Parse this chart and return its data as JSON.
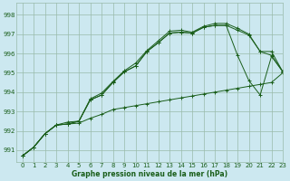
{
  "title": "Graphe pression niveau de la mer (hPa)",
  "bg_color": "#cce8f0",
  "grid_color": "#99bbaa",
  "line_color": "#1a5e1a",
  "marker": "+",
  "xlim": [
    -0.5,
    23
  ],
  "ylim": [
    990.4,
    998.6
  ],
  "yticks": [
    991,
    992,
    993,
    994,
    995,
    996,
    997,
    998
  ],
  "xticks": [
    0,
    1,
    2,
    3,
    4,
    5,
    6,
    7,
    8,
    9,
    10,
    11,
    12,
    13,
    14,
    15,
    16,
    17,
    18,
    19,
    20,
    21,
    22,
    23
  ],
  "series": [
    [
      990.7,
      991.15,
      991.85,
      992.3,
      992.35,
      992.4,
      992.65,
      992.85,
      993.1,
      993.2,
      993.3,
      993.4,
      993.5,
      993.6,
      993.7,
      993.8,
      993.9,
      994.0,
      994.1,
      994.2,
      994.3,
      994.4,
      994.5,
      995.0
    ],
    [
      990.7,
      991.15,
      991.85,
      992.3,
      992.35,
      992.5,
      993.6,
      993.85,
      994.5,
      995.05,
      995.35,
      996.1,
      996.55,
      997.05,
      997.1,
      997.05,
      997.35,
      997.45,
      997.45,
      997.2,
      996.95,
      996.1,
      995.9,
      995.05
    ],
    [
      990.7,
      991.15,
      991.85,
      992.3,
      992.35,
      992.5,
      993.6,
      993.85,
      994.5,
      995.05,
      995.35,
      996.1,
      996.55,
      997.05,
      997.1,
      997.05,
      997.35,
      997.45,
      997.45,
      995.9,
      994.6,
      993.85,
      995.85,
      995.05
    ],
    [
      990.7,
      991.15,
      991.85,
      992.3,
      992.45,
      992.5,
      993.65,
      993.95,
      994.55,
      995.1,
      995.5,
      996.15,
      996.65,
      997.15,
      997.2,
      997.1,
      997.4,
      997.55,
      997.55,
      997.3,
      997.0,
      996.1,
      996.1,
      995.05
    ]
  ]
}
